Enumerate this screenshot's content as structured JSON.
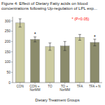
{
  "chart_data": {
    "type": "bar",
    "title": "Figure 4: Effect of Dietary Fatty acids on blood",
    "subtitle": "concentrations following Up-regulation of LPL exp...",
    "categories": [
      "CON",
      "CON + NorMM",
      "TO",
      "TO + NorMM",
      "TFA",
      "TFA + N"
    ],
    "values": [
      290,
      210,
      175,
      178,
      220,
      195
    ],
    "errors": [
      20,
      12,
      18,
      22,
      14,
      16
    ],
    "colors": [
      "#cccba0",
      "#8b8b6b",
      "#cccba0",
      "#8b8b6b",
      "#cccba0",
      "#8b8b6b"
    ],
    "significance_labels": [
      null,
      "*",
      null,
      null,
      null,
      "*"
    ],
    "x_label": "Dietary Treatment Groups",
    "ylim": [
      0,
      320
    ],
    "yticks": [
      0,
      50,
      100,
      150,
      200,
      250,
      300
    ],
    "annotation": {
      "text": "* (P<0.05)",
      "color": "red"
    },
    "grid": false
  }
}
